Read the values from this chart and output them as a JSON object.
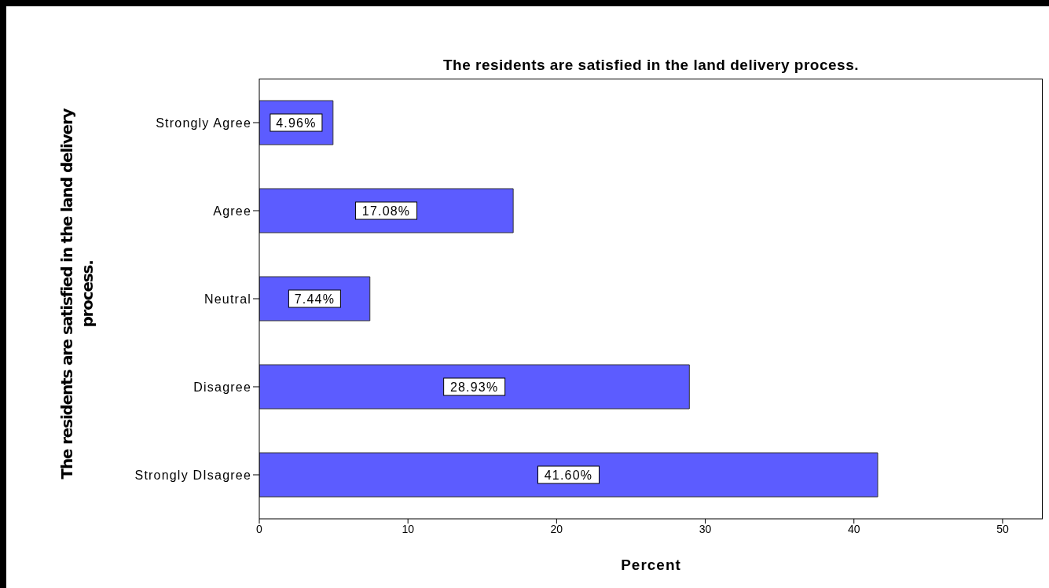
{
  "chart_data": {
    "type": "bar",
    "orientation": "horizontal",
    "title": "The residents are satisfied in the land delivery process.",
    "xlabel": "Percent",
    "ylabel": "The residents are satisfied in the land delivery process.",
    "categories": [
      "Strongly Agree",
      "Agree",
      "Neutral",
      "Disagree",
      "Strongly DIsagree"
    ],
    "values": [
      4.96,
      17.08,
      7.44,
      28.93,
      41.6
    ],
    "value_labels": [
      "4.96%",
      "17.08%",
      "7.44%",
      "28.93%",
      "41.60%"
    ],
    "color": "#5c5cff",
    "xlim": [
      0,
      52.7
    ],
    "xticks": [
      0,
      10,
      20,
      30,
      40,
      50
    ]
  }
}
